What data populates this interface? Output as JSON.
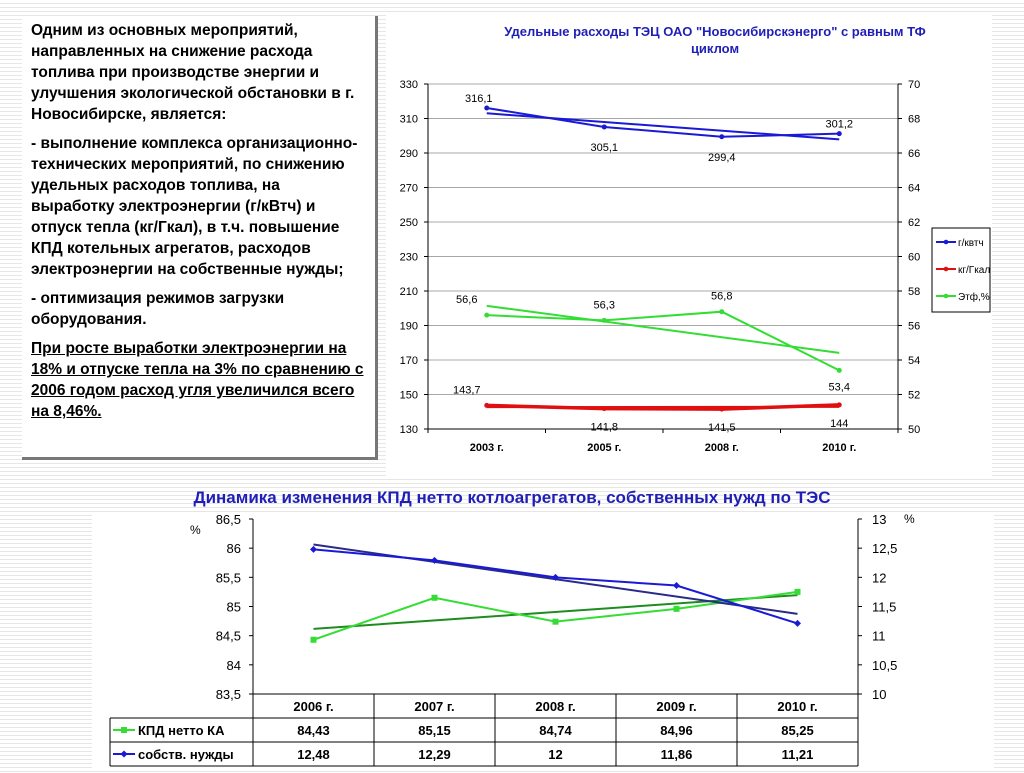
{
  "intro": {
    "p1": "Одним из основных мероприятий, направленных на снижение расхода топлива при производстве энергии и улучшения экологической обстановки в г. Новосибирске, является:",
    "p2": "- выполнение комплекса организационно-технических мероприятий, по снижению удельных расходов топлива, на выработку электроэнергии (г/кВтч) и отпуск тепла (кг/Гкал), в т.ч. повышение КПД котельных агрегатов, расходов электроэнергии на собственные нужды;",
    "p3": "- оптимизация режимов загрузки оборудования.",
    "p4": "При росте выработки электроэнергии на 18% и отпуске тепла на 3% по сравнению с 2006 годом расход угля увеличился всего на 8,46%."
  },
  "heading2": "Динамика изменения КПД нетто котлоагрегатов,  собственных нужд по ТЭС",
  "colors": {
    "blue": "#1a1ad6",
    "red": "#e01010",
    "green": "#33dd33",
    "dark_green": "#1e8c1e",
    "dark_blue": "#2a2a8a",
    "title_blue": "#1f1fb8"
  },
  "chart_data": [
    {
      "type": "line",
      "title": "Удельные расходы ТЭЦ ОАО \"Новосибирскэнерго\" с равным ТФ циклом",
      "categories": [
        "2003 г.",
        "2005 г.",
        "2008 г.",
        "2010 г."
      ],
      "ylim": [
        130,
        330
      ],
      "yticks": [
        "130",
        "150",
        "170",
        "190",
        "210",
        "230",
        "250",
        "270",
        "290",
        "310",
        "330"
      ],
      "y2lim": [
        50,
        70
      ],
      "y2ticks": [
        "50",
        "52",
        "54",
        "56",
        "58",
        "60",
        "62",
        "64",
        "66",
        "68",
        "70"
      ],
      "legend_position": "right",
      "series": [
        {
          "name": "г/квтч",
          "axis": "left",
          "color": "#1a1ad6",
          "values": [
            316.1,
            305.1,
            299.4,
            301.2
          ],
          "labels": [
            "316,1",
            "305,1",
            "299,4",
            "301,2"
          ]
        },
        {
          "name": "кг/Гкал",
          "axis": "left",
          "color": "#e01010",
          "values": [
            143.7,
            141.8,
            141.5,
            144
          ],
          "labels": [
            "143,7",
            "141,8",
            "141,5",
            "144"
          ]
        },
        {
          "name": "Этф,%",
          "axis": "right",
          "color": "#33dd33",
          "values": [
            56.6,
            56.3,
            56.8,
            53.4
          ],
          "labels": [
            "56,6",
            "56,3",
            "56,8",
            "53,4"
          ]
        }
      ]
    },
    {
      "type": "line",
      "categories": [
        "2006 г.",
        "2007 г.",
        "2008 г.",
        "2009 г.",
        "2010 г."
      ],
      "ylabel": "%",
      "y2label": "%",
      "ylim": [
        83.5,
        86.5
      ],
      "yticks": [
        "83,5",
        "84",
        "84,5",
        "85",
        "85,5",
        "86",
        "86,5"
      ],
      "y2lim": [
        10,
        13
      ],
      "y2ticks": [
        "10",
        "10,5",
        "11",
        "11,5",
        "12",
        "12,5",
        "13"
      ],
      "legend_position": "table",
      "series": [
        {
          "name": "КПД нетто КА",
          "axis": "left",
          "color": "#33dd33",
          "marker": "square",
          "values": [
            84.43,
            85.15,
            84.74,
            84.96,
            85.25
          ],
          "labels": [
            "84,43",
            "85,15",
            "84,74",
            "84,96",
            "85,25"
          ]
        },
        {
          "name": "собств. нужды",
          "axis": "right",
          "color": "#1a1ad6",
          "marker": "diamond",
          "values": [
            12.48,
            12.29,
            12,
            11.86,
            11.21
          ],
          "labels": [
            "12,48",
            "12,29",
            "12",
            "11,86",
            "11,21"
          ]
        }
      ]
    }
  ]
}
